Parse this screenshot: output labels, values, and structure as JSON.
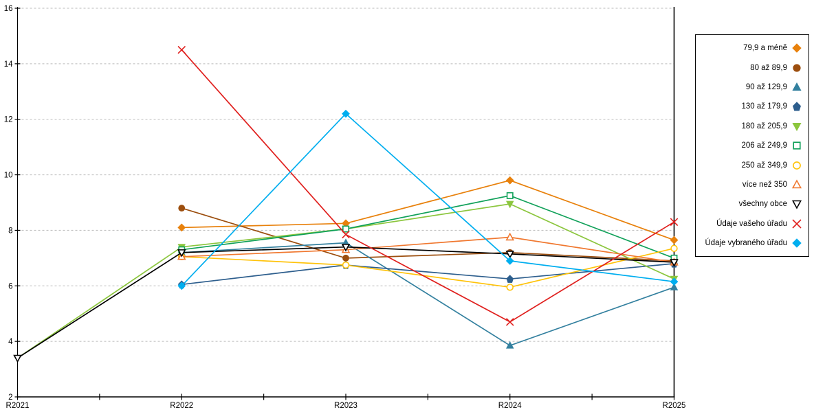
{
  "chart_data": {
    "type": "line",
    "title": "",
    "categories": [
      "R2021",
      "R2022",
      "R2023",
      "R2024",
      "R2025"
    ],
    "y_axis": {
      "min": 2,
      "max": 16,
      "step": 2,
      "tick_labels": [
        "2",
        "4",
        "6",
        "8",
        "10",
        "12",
        "14",
        "16"
      ]
    },
    "grid": "horizontal-dashed",
    "legend_position": "right",
    "series": [
      {
        "name": "79,9 a méně",
        "color": "#E8810C",
        "marker": "diamond",
        "marker_style": "filled",
        "values": [
          null,
          8.1,
          8.25,
          9.8,
          7.65
        ]
      },
      {
        "name": "80 až 89,9",
        "color": "#9C4E0E",
        "marker": "circle",
        "marker_style": "filled",
        "values": [
          null,
          8.8,
          7.0,
          7.2,
          6.9
        ]
      },
      {
        "name": "90 až 129,9",
        "color": "#33809F",
        "marker": "triangle-up",
        "marker_style": "filled",
        "values": [
          null,
          7.2,
          7.55,
          3.85,
          5.95
        ]
      },
      {
        "name": "130 až 179,9",
        "color": "#2D5E8D",
        "marker": "pentagon",
        "marker_style": "filled",
        "values": [
          null,
          6.05,
          6.75,
          6.25,
          6.8
        ]
      },
      {
        "name": "180 až 205,9",
        "color": "#8CC63E",
        "marker": "triangle-down",
        "marker_style": "filled",
        "values": [
          3.4,
          7.4,
          8.05,
          8.95,
          6.25
        ]
      },
      {
        "name": "206 až 249,9",
        "color": "#11A15A",
        "marker": "square",
        "marker_style": "open",
        "values": [
          null,
          7.3,
          8.05,
          9.25,
          7.0
        ]
      },
      {
        "name": "250 až 349,9",
        "color": "#FFC30B",
        "marker": "circle",
        "marker_style": "open",
        "values": [
          null,
          7.05,
          6.75,
          5.95,
          7.35
        ]
      },
      {
        "name": "více než 350",
        "color": "#F07830",
        "marker": "triangle-up",
        "marker_style": "open",
        "values": [
          null,
          7.05,
          7.3,
          7.75,
          6.85
        ]
      },
      {
        "name": "všechny obce",
        "color": "#000000",
        "marker": "triangle-down",
        "marker_style": "open",
        "values": [
          3.4,
          7.2,
          7.4,
          7.15,
          6.85
        ]
      },
      {
        "name": "Údaje vašeho úřadu",
        "color": "#E0201E",
        "marker": "x",
        "marker_style": "stroke",
        "values": [
          null,
          14.5,
          7.85,
          4.7,
          8.3
        ]
      },
      {
        "name": "Údaje vybraného úřadu",
        "color": "#00AEEF",
        "marker": "diamond",
        "marker_style": "filled",
        "values": [
          null,
          6.0,
          12.2,
          6.9,
          6.15
        ]
      }
    ]
  },
  "colors": {
    "background": "#ffffff",
    "axis": "#000000",
    "grid": "#bbbbbb"
  }
}
